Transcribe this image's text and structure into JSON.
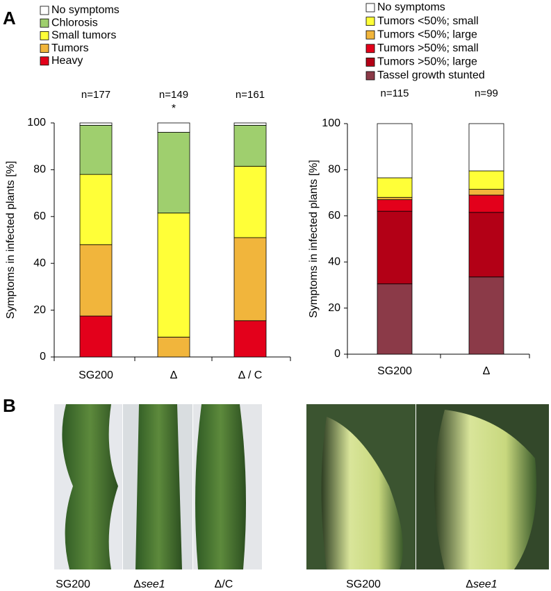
{
  "panel_labels": [
    "A",
    "B"
  ],
  "chart_data": [
    {
      "type": "stacked-bar",
      "y_label": "Symptoms in infected plants [%]",
      "categories": [
        "SG200",
        "Δ",
        "Δ / C"
      ],
      "annotations": [
        "n=177",
        "n=149",
        "n=161"
      ],
      "significance": [
        null,
        "*",
        null
      ],
      "ylim": [
        0,
        100
      ],
      "yticks": [
        0,
        20,
        40,
        60,
        80,
        100
      ],
      "series": [
        {
          "name": "No symptoms",
          "color": "#ffffff",
          "values": [
            1,
            4,
            1
          ]
        },
        {
          "name": "Chlorosis",
          "color": "#9fcf6e",
          "values": [
            21,
            34.5,
            17.5
          ]
        },
        {
          "name": "Small tumors",
          "color": "#ffff38",
          "values": [
            30,
            53,
            30.5
          ]
        },
        {
          "name": "Tumors",
          "color": "#f1b53c",
          "values": [
            30.5,
            8.5,
            35.5
          ]
        },
        {
          "name": "Heavy",
          "color": "#e3001b",
          "values": [
            17.5,
            0,
            15.5
          ]
        }
      ]
    },
    {
      "type": "stacked-bar",
      "y_label": "Symptoms in infected plants [%]",
      "categories": [
        "SG200",
        "Δ"
      ],
      "annotations": [
        "n=115",
        "n=99"
      ],
      "ylim": [
        0,
        100
      ],
      "yticks": [
        0,
        20,
        40,
        60,
        80,
        100
      ],
      "series": [
        {
          "name": "No symptoms",
          "color": "#ffffff",
          "values": [
            23.5,
            20.5
          ]
        },
        {
          "name": "Tumors <50%; small",
          "color": "#ffff38",
          "values": [
            8.5,
            8
          ]
        },
        {
          "name": "Tumors <50%; large",
          "color": "#f1b53c",
          "values": [
            1,
            2.5
          ]
        },
        {
          "name": "Tumors >50%; small",
          "color": "#e3001b",
          "values": [
            5,
            7.5
          ]
        },
        {
          "name": "Tumors >50%; large",
          "color": "#b30016",
          "values": [
            31.5,
            28
          ]
        },
        {
          "name": "Tassel growth stunted",
          "color": "#8b3a48",
          "values": [
            30.5,
            33.5
          ]
        }
      ]
    }
  ],
  "photo_captions": [
    {
      "text": "SG200"
    },
    {
      "text": "Δ",
      "italic": "see1"
    },
    {
      "text": "Δ/C"
    },
    {
      "text": "SG200"
    },
    {
      "text": "Δ",
      "italic": "see1"
    }
  ]
}
